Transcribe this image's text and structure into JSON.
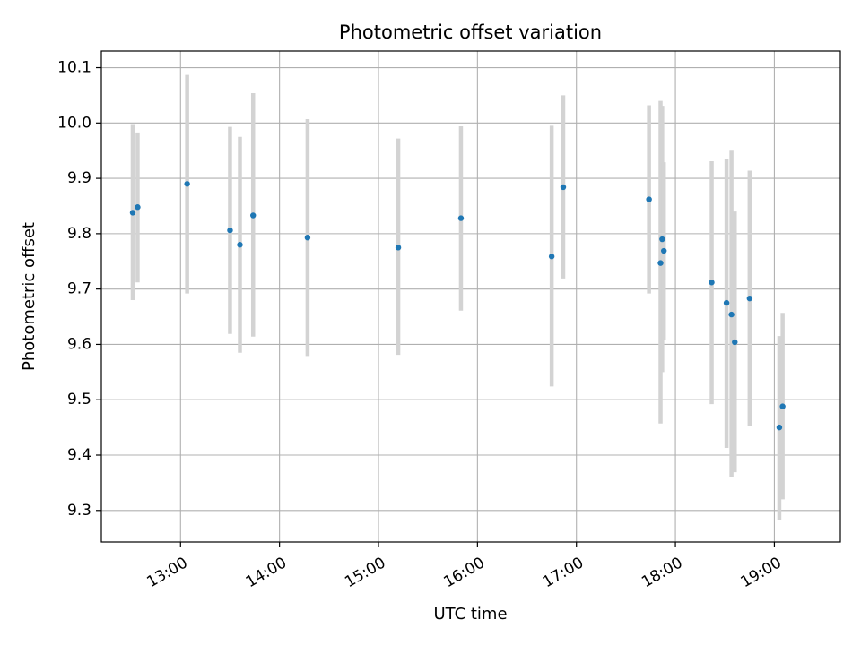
{
  "chart_data": {
    "type": "scatter",
    "title": "Photometric offset variation",
    "xlabel": "UTC time",
    "ylabel": "Photometric offset",
    "x_tick_labels": [
      "13:00",
      "14:00",
      "15:00",
      "16:00",
      "17:00",
      "18:00",
      "19:00"
    ],
    "y_tick_labels": [
      "9.3",
      "9.4",
      "9.5",
      "9.6",
      "9.7",
      "9.8",
      "9.9",
      "10.0",
      "10.1"
    ],
    "xlim": [
      "12:12",
      "19:40"
    ],
    "ylim": [
      9.243,
      10.13
    ],
    "grid": true,
    "colors": {
      "point": "#1f77b4",
      "errorbar": "#d3d3d3",
      "grid": "#b0b0b0"
    },
    "points": [
      {
        "time": "12:31",
        "offset": 9.838,
        "err_low": 9.68,
        "err_high": 9.998
      },
      {
        "time": "12:34",
        "offset": 9.848,
        "err_low": 9.712,
        "err_high": 9.983
      },
      {
        "time": "13:04",
        "offset": 9.89,
        "err_low": 9.692,
        "err_high": 10.087
      },
      {
        "time": "13:30",
        "offset": 9.806,
        "err_low": 9.619,
        "err_high": 9.993
      },
      {
        "time": "13:36",
        "offset": 9.78,
        "err_low": 9.585,
        "err_high": 9.975
      },
      {
        "time": "13:44",
        "offset": 9.833,
        "err_low": 9.614,
        "err_high": 10.054
      },
      {
        "time": "14:17",
        "offset": 9.793,
        "err_low": 9.579,
        "err_high": 10.007
      },
      {
        "time": "15:12",
        "offset": 9.775,
        "err_low": 9.581,
        "err_high": 9.972
      },
      {
        "time": "15:50",
        "offset": 9.828,
        "err_low": 9.661,
        "err_high": 9.994
      },
      {
        "time": "16:45",
        "offset": 9.759,
        "err_low": 9.524,
        "err_high": 9.995
      },
      {
        "time": "16:52",
        "offset": 9.884,
        "err_low": 9.719,
        "err_high": 10.05
      },
      {
        "time": "17:44",
        "offset": 9.862,
        "err_low": 9.692,
        "err_high": 10.032
      },
      {
        "time": "17:51",
        "offset": 9.747,
        "err_low": 9.457,
        "err_high": 10.04
      },
      {
        "time": "17:52",
        "offset": 9.79,
        "err_low": 9.55,
        "err_high": 10.031
      },
      {
        "time": "17:53",
        "offset": 9.769,
        "err_low": 9.608,
        "err_high": 9.929
      },
      {
        "time": "18:22",
        "offset": 9.712,
        "err_low": 9.492,
        "err_high": 9.931
      },
      {
        "time": "18:31",
        "offset": 9.675,
        "err_low": 9.413,
        "err_high": 9.935
      },
      {
        "time": "18:34",
        "offset": 9.654,
        "err_low": 9.361,
        "err_high": 9.95
      },
      {
        "time": "18:36",
        "offset": 9.604,
        "err_low": 9.369,
        "err_high": 9.84
      },
      {
        "time": "18:45",
        "offset": 9.683,
        "err_low": 9.453,
        "err_high": 9.914
      },
      {
        "time": "19:03",
        "offset": 9.45,
        "err_low": 9.283,
        "err_high": 9.615
      },
      {
        "time": "19:05",
        "offset": 9.488,
        "err_low": 9.32,
        "err_high": 9.657
      }
    ]
  }
}
